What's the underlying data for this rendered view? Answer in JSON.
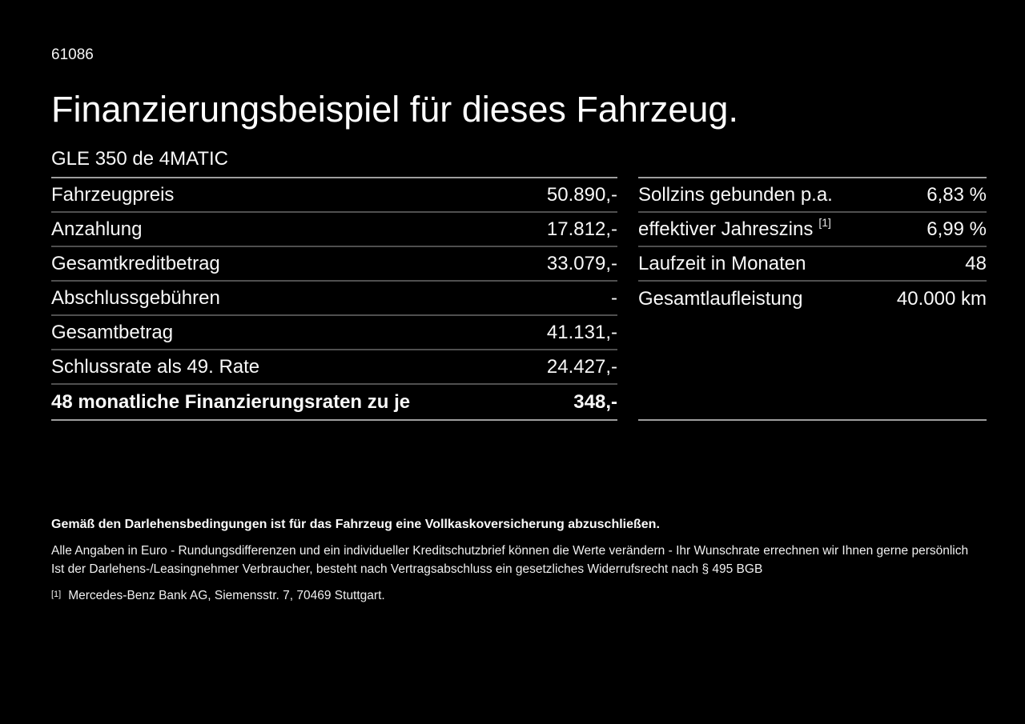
{
  "page": {
    "doc_number": "61086",
    "title": "Finanzierungsbeispiel für dieses Fahrzeug.",
    "model": "GLE 350 de 4MATIC"
  },
  "finance_table": {
    "rows": [
      {
        "label": "Fahrzeugpreis",
        "value": "50.890,-"
      },
      {
        "label": "Anzahlung",
        "value": "17.812,-"
      },
      {
        "label": "Gesamtkreditbetrag",
        "value": "33.079,-"
      },
      {
        "label": "Abschlussgebühren",
        "value": "-"
      },
      {
        "label": "Gesamtbetrag",
        "value": "41.131,-"
      },
      {
        "label": "Schlussrate als 49. Rate",
        "value": "24.427,-"
      },
      {
        "label": "48 monatliche Finanzierungsraten zu je",
        "value": "348,-"
      }
    ]
  },
  "conditions_table": {
    "rows": [
      {
        "label": "Sollzins gebunden p.a.",
        "sup": "",
        "value": "6,83 %"
      },
      {
        "label": "effektiver Jahreszins",
        "sup": "[1]",
        "value": "6,99 %"
      },
      {
        "label": "Laufzeit in Monaten",
        "sup": "",
        "value": "48"
      },
      {
        "label": "Gesamtlaufleistung",
        "sup": "",
        "value": "40.000 km"
      }
    ]
  },
  "footer": {
    "insurance_note": "Gemäß den Darlehensbedingungen ist für das Fahrzeug eine Vollkaskoversicherung abzuschließen.",
    "disclaimer_line1": "Alle Angaben in Euro - Rundungsdifferenzen und ein individueller Kreditschutzbrief können die Werte verändern - Ihr Wunschrate errechnen wir Ihnen gerne persönlich",
    "disclaimer_line2": "Ist der Darlehens-/Leasingnehmer Verbraucher, besteht nach Vertragsabschluss ein gesetzliches Widerrufsrecht nach § 495 BGB",
    "footnote_marker": "[1]",
    "footnote_text": "Mercedes-Benz Bank AG, Siemensstr. 7, 70469 Stuttgart."
  },
  "colors": {
    "background": "#000000",
    "text": "#ffffff",
    "table_outer_border": "#9e9e9e",
    "table_inner_border": "#4f4f4f"
  }
}
